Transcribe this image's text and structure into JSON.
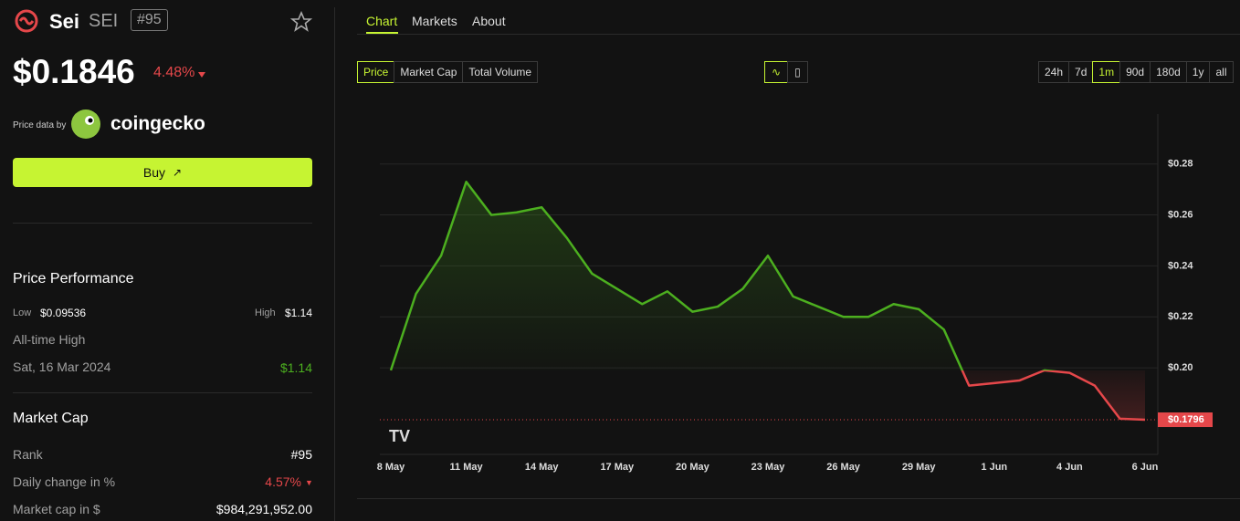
{
  "header": {
    "name": "Sei",
    "symbol": "SEI",
    "rank": "#95"
  },
  "price": {
    "value": "$0.1846",
    "change": "4.48%"
  },
  "source": {
    "label": "Price data by",
    "provider": "coingecko"
  },
  "buy": "Buy",
  "performance": {
    "title": "Price Performance",
    "low_label": "Low",
    "low": "$0.09536",
    "high_label": "High",
    "high": "$1.14",
    "ath_label": "All-time High",
    "ath_date": "Sat, 16 Mar 2024",
    "ath": "$1.14"
  },
  "market_cap": {
    "title": "Market Cap",
    "rows": [
      [
        "Rank",
        "#95"
      ],
      [
        "Daily change in %",
        "4.57%"
      ],
      [
        "Market cap in $",
        "$984,291,952.00"
      ]
    ]
  },
  "tabs": [
    "Chart",
    "Markets",
    "About"
  ],
  "metrics": [
    "Price",
    "Market Cap",
    "Total Volume"
  ],
  "ranges": [
    "24h",
    "7d",
    "1m",
    "90d",
    "180d",
    "1y",
    "all"
  ],
  "chart_data": {
    "type": "line",
    "categories": [
      "8 May",
      null,
      null,
      "11 May",
      null,
      null,
      "14 May",
      null,
      null,
      "17 May",
      null,
      null,
      "20 May",
      null,
      null,
      "23 May",
      null,
      null,
      "26 May",
      null,
      null,
      "29 May",
      null,
      null,
      "1 Jun",
      null,
      null,
      "4 Jun",
      null,
      null,
      "6 Jun"
    ],
    "values": [
      0.199,
      0.229,
      0.244,
      0.273,
      0.26,
      0.261,
      0.263,
      0.251,
      0.237,
      0.231,
      0.225,
      0.23,
      0.222,
      0.224,
      0.231,
      0.244,
      0.228,
      0.224,
      0.22,
      0.22,
      0.225,
      0.223,
      0.215,
      0.193,
      0.194,
      0.195,
      0.199,
      0.198,
      0.193,
      0.18,
      0.1796
    ],
    "up_color": "#4caf1f",
    "down_color": "#e5474a",
    "ylim": [
      0.166,
      0.2996
    ],
    "yticks": [
      {
        "value": 0.2,
        "label": "$0.20"
      },
      {
        "value": 0.22,
        "label": "$0.22"
      },
      {
        "value": 0.24,
        "label": "$0.24"
      },
      {
        "value": 0.26,
        "label": "$0.26"
      },
      {
        "value": 0.28,
        "label": "$0.28"
      }
    ],
    "current": {
      "value": 0.1796,
      "label": "$0.1796"
    },
    "grid": true
  }
}
